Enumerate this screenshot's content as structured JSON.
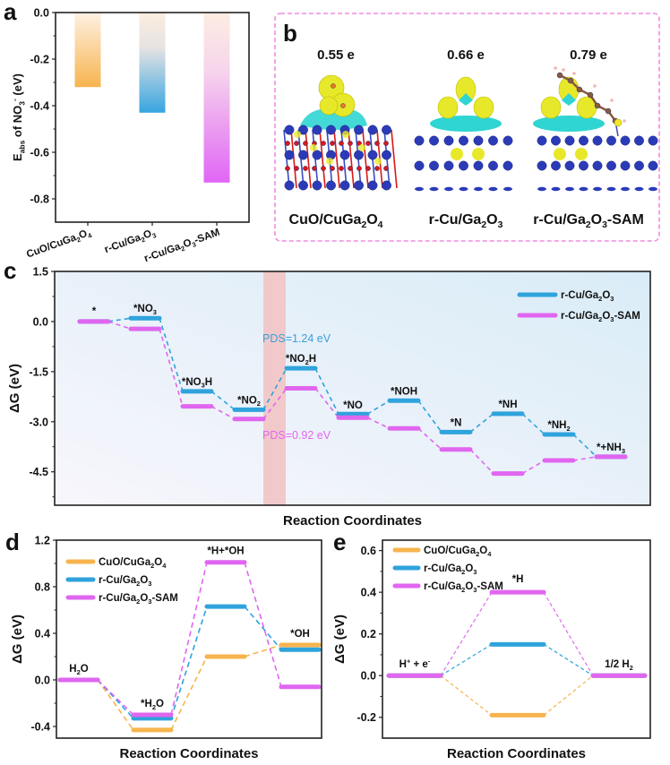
{
  "colors": {
    "orange": "#F7B44E",
    "blue": "#2FA3DC",
    "pink": "#E066F0",
    "pds_blue": "#3AA0D8",
    "pds_pink": "#E066F0",
    "panel_b_border": "#F08CE0",
    "band": "#F2C4C4"
  },
  "chart_data": [
    {
      "panel": "a",
      "type": "bar",
      "categories": [
        "CuO/CuGa2O4",
        "r-Cu/Ga2O3",
        "r-Cu/Ga2O3-SAM"
      ],
      "category_labels": [
        [
          {
            "t": "CuO/CuGa"
          },
          {
            "t": "2",
            "sub": true
          },
          {
            "t": "O"
          },
          {
            "t": "4",
            "sub": true
          }
        ],
        [
          {
            "t": "r-Cu/Ga"
          },
          {
            "t": "2",
            "sub": true
          },
          {
            "t": "O"
          },
          {
            "t": "3",
            "sub": true
          }
        ],
        [
          {
            "t": "r-Cu/Ga"
          },
          {
            "t": "2",
            "sub": true
          },
          {
            "t": "O"
          },
          {
            "t": "3",
            "sub": true
          },
          {
            "t": "-SAM"
          }
        ]
      ],
      "values": [
        -0.32,
        -0.43,
        -0.73
      ],
      "bar_colors": [
        "orange",
        "blue",
        "pink"
      ],
      "ylabel_parts": [
        {
          "t": "E"
        },
        {
          "t": "abs",
          "sub": true
        },
        {
          "t": " of NO"
        },
        {
          "t": "3",
          "sub": true
        },
        {
          "t": "-",
          "sup": true
        },
        {
          "t": " (eV)"
        }
      ],
      "ylim": [
        -0.9,
        0.0
      ],
      "yticks": [
        0.0,
        -0.2,
        -0.4,
        -0.6,
        -0.8
      ],
      "ytick_labels": [
        "0.0",
        "-0.2",
        "-0.4",
        "-0.6",
        "-0.8"
      ],
      "panel_label": "a",
      "gradient": true
    },
    {
      "panel": "c",
      "type": "line",
      "subtype": "free-energy-diagram",
      "panel_label": "c",
      "xlabel": "Reaction Coordinates",
      "ylabel": "ΔG (eV)",
      "ylim": [
        -5.5,
        1.5
      ],
      "yticks": [
        1.5,
        0.0,
        -1.5,
        -3.0,
        -4.5
      ],
      "ytick_labels": [
        "1.5",
        "0.0",
        "-1.5",
        "-3.0",
        "-4.5"
      ],
      "categories": [
        "*",
        "*NO3",
        "*NO3H",
        "*NO2",
        "*NO2H",
        "*NO",
        "*NOH",
        "*N",
        "*NH",
        "*NH2",
        "*+NH3"
      ],
      "category_labels": [
        [
          {
            "t": "*"
          }
        ],
        [
          {
            "t": "*NO"
          },
          {
            "t": "3",
            "sub": true
          }
        ],
        [
          {
            "t": "*NO"
          },
          {
            "t": "3",
            "sub": true
          },
          {
            "t": "H"
          }
        ],
        [
          {
            "t": "*NO"
          },
          {
            "t": "2",
            "sub": true
          }
        ],
        [
          {
            "t": "*NO"
          },
          {
            "t": "2",
            "sub": true
          },
          {
            "t": "H"
          }
        ],
        [
          {
            "t": "*NO"
          }
        ],
        [
          {
            "t": "*NOH"
          }
        ],
        [
          {
            "t": "*N"
          }
        ],
        [
          {
            "t": "*NH"
          }
        ],
        [
          {
            "t": "*NH"
          },
          {
            "t": "2",
            "sub": true
          }
        ],
        [
          {
            "t": "*+NH"
          },
          {
            "t": "3",
            "sub": true
          }
        ]
      ],
      "series": [
        {
          "name": "r-Cu/Ga2O3",
          "label_parts": [
            {
              "t": "r-Cu/Ga"
            },
            {
              "t": "2",
              "sub": true
            },
            {
              "t": "O"
            },
            {
              "t": "3",
              "sub": true
            }
          ],
          "color": "blue",
          "values": [
            0.0,
            0.1,
            -2.09,
            -2.64,
            -1.4,
            -2.77,
            -2.37,
            -3.31,
            -2.76,
            -3.38,
            -4.05
          ]
        },
        {
          "name": "r-Cu/Ga2O3-SAM",
          "label_parts": [
            {
              "t": "r-Cu/Ga"
            },
            {
              "t": "2",
              "sub": true
            },
            {
              "t": "O"
            },
            {
              "t": "3",
              "sub": true
            },
            {
              "t": "-SAM"
            }
          ],
          "color": "pink",
          "values": [
            0.0,
            -0.22,
            -2.54,
            -2.92,
            -2.0,
            -2.88,
            -3.2,
            -3.83,
            -4.55,
            -4.16,
            -4.05
          ]
        }
      ],
      "annotations": [
        {
          "text": "PDS=1.24 eV",
          "color": "pds_blue",
          "value": 1.24
        },
        {
          "text": "PDS=0.92 eV",
          "color": "pds_pink",
          "value": 0.92
        }
      ],
      "highlight_step": "*NO2 → *NO2H",
      "legend": "top-right"
    },
    {
      "panel": "d",
      "type": "line",
      "subtype": "free-energy-diagram",
      "panel_label": "d",
      "xlabel": "Reaction Coordinates",
      "ylabel": "ΔG (eV)",
      "ylim": [
        -0.5,
        1.2
      ],
      "yticks": [
        1.2,
        0.8,
        0.4,
        0.0,
        -0.4
      ],
      "ytick_labels": [
        "1.2",
        "0.8",
        "0.4",
        "0.0",
        "-0.4"
      ],
      "categories": [
        "H2O",
        "*H2O",
        "*H+*OH",
        "*OH"
      ],
      "category_labels": [
        [
          {
            "t": "H"
          },
          {
            "t": "2",
            "sub": true
          },
          {
            "t": "O"
          }
        ],
        [
          {
            "t": "*H"
          },
          {
            "t": "2",
            "sub": true
          },
          {
            "t": "O"
          }
        ],
        [
          {
            "t": "*H+*OH"
          }
        ],
        [
          {
            "t": "*OH"
          }
        ]
      ],
      "series": [
        {
          "name": "CuO/CuGa2O4",
          "label_parts": [
            {
              "t": "CuO/CuGa"
            },
            {
              "t": "2",
              "sub": true
            },
            {
              "t": "O"
            },
            {
              "t": "4",
              "sub": true
            }
          ],
          "color": "orange",
          "values": [
            0.0,
            -0.43,
            0.2,
            0.3
          ]
        },
        {
          "name": "r-Cu/Ga2O3",
          "label_parts": [
            {
              "t": "r-Cu/Ga"
            },
            {
              "t": "2",
              "sub": true
            },
            {
              "t": "O"
            },
            {
              "t": "3",
              "sub": true
            }
          ],
          "color": "blue",
          "values": [
            0.0,
            -0.33,
            0.63,
            0.26
          ]
        },
        {
          "name": "r-Cu/Ga2O3-SAM",
          "label_parts": [
            {
              "t": "r-Cu/Ga"
            },
            {
              "t": "2",
              "sub": true
            },
            {
              "t": "O"
            },
            {
              "t": "3",
              "sub": true
            },
            {
              "t": "-SAM"
            }
          ],
          "color": "pink",
          "values": [
            0.0,
            -0.3,
            1.01,
            -0.06
          ]
        }
      ],
      "legend": "top-left"
    },
    {
      "panel": "e",
      "type": "line",
      "subtype": "free-energy-diagram",
      "panel_label": "e",
      "xlabel": "Reaction Coordinates",
      "ylabel": "ΔG (eV)",
      "ylim": [
        -0.3,
        0.65
      ],
      "yticks": [
        0.6,
        0.4,
        0.2,
        0.0,
        -0.2
      ],
      "ytick_labels": [
        "0.6",
        "0.4",
        "0.2",
        "0.0",
        "-0.2"
      ],
      "categories": [
        "H+ + e-",
        "*H",
        "1/2 H2"
      ],
      "category_labels": [
        [
          {
            "t": "H"
          },
          {
            "t": "+",
            "sup": true
          },
          {
            "t": " + e"
          },
          {
            "t": "-",
            "sup": true
          }
        ],
        [
          {
            "t": "*H"
          }
        ],
        [
          {
            "t": "1/2 H"
          },
          {
            "t": "2",
            "sub": true
          }
        ]
      ],
      "series": [
        {
          "name": "CuO/CuGa2O4",
          "label_parts": [
            {
              "t": "CuO/CuGa"
            },
            {
              "t": "2",
              "sub": true
            },
            {
              "t": "O"
            },
            {
              "t": "4",
              "sub": true
            }
          ],
          "color": "orange",
          "values": [
            0.0,
            -0.19,
            0.0
          ]
        },
        {
          "name": "r-Cu/Ga2O3",
          "label_parts": [
            {
              "t": "r-Cu/Ga"
            },
            {
              "t": "2",
              "sub": true
            },
            {
              "t": "O"
            },
            {
              "t": "3",
              "sub": true
            }
          ],
          "color": "blue",
          "values": [
            0.0,
            0.15,
            0.0
          ]
        },
        {
          "name": "r-Cu/Ga2O3-SAM",
          "label_parts": [
            {
              "t": "r-Cu/Ga"
            },
            {
              "t": "2",
              "sub": true
            },
            {
              "t": "O"
            },
            {
              "t": "3",
              "sub": true
            },
            {
              "t": "-SAM"
            }
          ],
          "color": "pink",
          "values": [
            0.0,
            0.4,
            0.0
          ]
        }
      ],
      "legend": "top-left"
    }
  ],
  "panel_b": {
    "panel_label": "b",
    "structures": [
      {
        "charge": "0.55 e",
        "label_parts": [
          {
            "t": "CuO/CuGa"
          },
          {
            "t": "2",
            "sub": true
          },
          {
            "t": "O"
          },
          {
            "t": "4",
            "sub": true
          }
        ],
        "kind": "cuo"
      },
      {
        "charge": "0.66 e",
        "label_parts": [
          {
            "t": "r-Cu/Ga"
          },
          {
            "t": "2",
            "sub": true
          },
          {
            "t": "O"
          },
          {
            "t": "3",
            "sub": true
          }
        ],
        "kind": "rcu"
      },
      {
        "charge": "0.79 e",
        "label_parts": [
          {
            "t": "r-Cu/Ga"
          },
          {
            "t": "2",
            "sub": true
          },
          {
            "t": "O"
          },
          {
            "t": "3",
            "sub": true
          },
          {
            "t": "-SAM"
          }
        ],
        "kind": "sam"
      }
    ]
  }
}
